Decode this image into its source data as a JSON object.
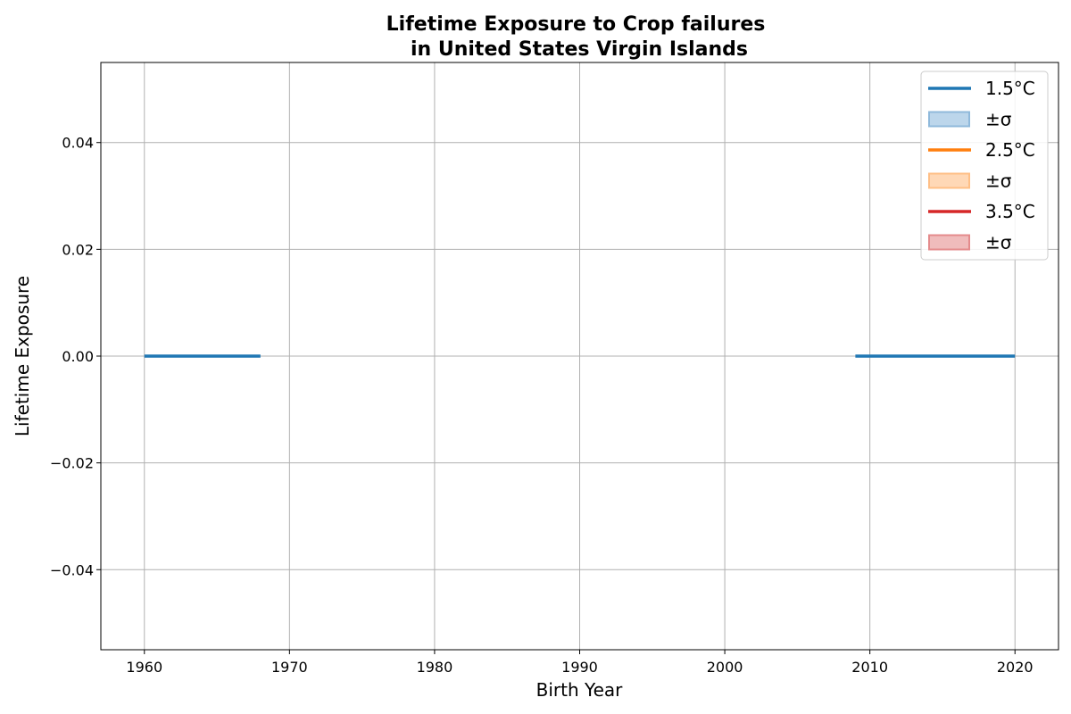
{
  "chart_data": {
    "type": "line",
    "title": "Lifetime Exposure to Crop failures",
    "subtitle": "in United States Virgin Islands",
    "xlabel": "Birth Year",
    "ylabel": "Lifetime Exposure",
    "xlim": [
      1957,
      2023
    ],
    "ylim": [
      -0.055,
      0.055
    ],
    "xticks": [
      1960,
      1970,
      1980,
      1990,
      2000,
      2010,
      2020
    ],
    "xtick_labels": [
      "1960",
      "1970",
      "1980",
      "1990",
      "2000",
      "2010",
      "2020"
    ],
    "yticks": [
      0.04,
      0.02,
      0.0,
      -0.02,
      -0.04
    ],
    "ytick_labels": [
      "0.04",
      "0.02",
      "0.00",
      "−0.02",
      "−0.04"
    ],
    "grid": true,
    "legend_position": "top-right",
    "legend": [
      {
        "label": "1.5°C",
        "kind": "line",
        "series": 0
      },
      {
        "label": "±σ",
        "kind": "band",
        "series": 0
      },
      {
        "label": "2.5°C",
        "kind": "line",
        "series": 1
      },
      {
        "label": "±σ",
        "kind": "band",
        "series": 1
      },
      {
        "label": "3.5°C",
        "kind": "line",
        "series": 2
      },
      {
        "label": "±σ",
        "kind": "band",
        "series": 2
      }
    ],
    "series": [
      {
        "name": "1.5°C",
        "color": "#1f77b4",
        "band_fill": "#bcd6eb",
        "band_edge": "#8fb9db",
        "segments": [
          {
            "x": [
              1960,
              1961,
              1962,
              1963,
              1964,
              1965,
              1966,
              1967,
              1968
            ],
            "y": [
              0,
              0,
              0,
              0,
              0,
              0,
              0,
              0,
              0
            ]
          },
          {
            "x": [
              2009,
              2010,
              2011,
              2012,
              2013,
              2014,
              2015,
              2016,
              2017,
              2018,
              2019,
              2020
            ],
            "y": [
              0,
              0,
              0,
              0,
              0,
              0,
              0,
              0,
              0,
              0,
              0,
              0
            ]
          }
        ]
      },
      {
        "name": "2.5°C",
        "color": "#ff7f0e",
        "band_fill": "#ffd8b6",
        "band_edge": "#ffbf86",
        "segments": []
      },
      {
        "name": "3.5°C",
        "color": "#d62728",
        "band_fill": "#f0bcbc",
        "band_edge": "#e48b8c",
        "segments": []
      }
    ]
  }
}
